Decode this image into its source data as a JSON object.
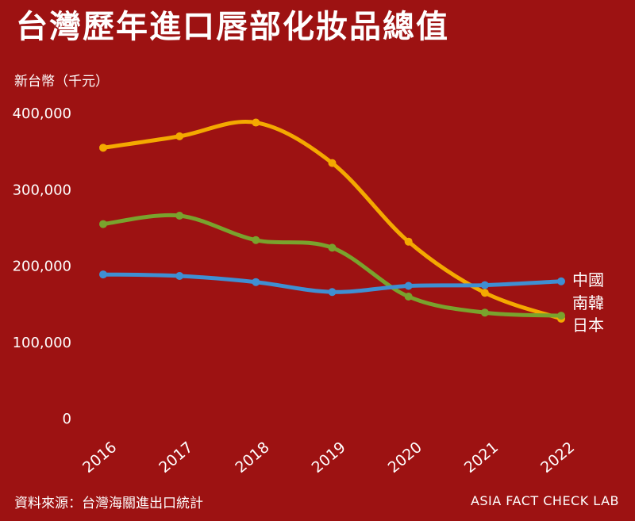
{
  "page": {
    "title": "台灣歷年進口唇部化妝品總值",
    "unit_label": "新台幣（千元）",
    "source": "資料來源：台灣海關進出口統計",
    "credit": "ASIA FACT CHECK LAB"
  },
  "colors": {
    "background": "#9D1212",
    "text": "#FFFFFF",
    "japan": "#F4A900",
    "south_korea": "#79A32D",
    "china": "#3F8FD2"
  },
  "chart_data": {
    "type": "line",
    "title": "台灣歷年進口唇部化妝品總值",
    "ylabel": "新台幣（千元）",
    "xlabel": "",
    "x": [
      2016,
      2017,
      2018,
      2019,
      2020,
      2021,
      2022
    ],
    "series": [
      {
        "name": "日本",
        "key": "japan",
        "color": "#F4A900",
        "values": [
          355000,
          370000,
          388000,
          335000,
          232000,
          165000,
          131000
        ]
      },
      {
        "name": "南韓",
        "key": "south_korea",
        "color": "#79A32D",
        "values": [
          255000,
          266000,
          234000,
          224000,
          160000,
          139000,
          135000
        ]
      },
      {
        "name": "中國",
        "key": "china",
        "color": "#3F8FD2",
        "values": [
          189000,
          187000,
          179000,
          166000,
          174000,
          175000,
          180000
        ]
      }
    ],
    "ylim": [
      0,
      400000
    ],
    "yticks": [
      0,
      100000,
      200000,
      300000,
      400000
    ],
    "grid": false,
    "legend_position": "right-end-labels"
  }
}
